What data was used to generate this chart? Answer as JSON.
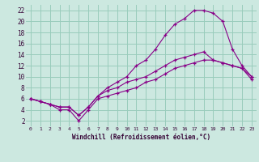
{
  "xlabel": "Windchill (Refroidissement éolien,°C)",
  "bg_color": "#cce8e0",
  "grid_color": "#99ccbb",
  "line_color": "#880088",
  "xlim": [
    -0.5,
    23.5
  ],
  "ylim": [
    1,
    23
  ],
  "xticks": [
    0,
    1,
    2,
    3,
    4,
    5,
    6,
    7,
    8,
    9,
    10,
    11,
    12,
    13,
    14,
    15,
    16,
    17,
    18,
    19,
    20,
    21,
    22,
    23
  ],
  "yticks": [
    2,
    4,
    6,
    8,
    10,
    12,
    14,
    16,
    18,
    20,
    22
  ],
  "line_top_x": [
    0,
    1,
    2,
    3,
    4,
    5,
    6,
    7,
    8,
    9,
    10,
    11,
    12,
    13,
    14,
    15,
    16,
    17,
    18,
    19,
    20,
    21,
    22,
    23
  ],
  "line_top_y": [
    6,
    5.5,
    5,
    4.5,
    4.5,
    3,
    4.5,
    6.5,
    8,
    9,
    10,
    12,
    13,
    15,
    17.5,
    19.5,
    20.5,
    22,
    22,
    21.5,
    20,
    15,
    12,
    10
  ],
  "line_mid_x": [
    0,
    1,
    2,
    3,
    4,
    5,
    6,
    7,
    8,
    9,
    10,
    11,
    12,
    13,
    14,
    15,
    16,
    17,
    18,
    19,
    20,
    21,
    22,
    23
  ],
  "line_mid_y": [
    6,
    5.5,
    5,
    4.5,
    4.5,
    3,
    4.5,
    6.5,
    7.5,
    8,
    9,
    9.5,
    10,
    11,
    12,
    13,
    13.5,
    14,
    14.5,
    13,
    12.5,
    12,
    11.5,
    10
  ],
  "line_bot_x": [
    0,
    1,
    2,
    3,
    4,
    5,
    6,
    7,
    8,
    9,
    10,
    11,
    12,
    13,
    14,
    15,
    16,
    17,
    18,
    19,
    20,
    21,
    22,
    23
  ],
  "line_bot_y": [
    6,
    5.5,
    5,
    4,
    4,
    2,
    4,
    6,
    6.5,
    7,
    7.5,
    8,
    9,
    9.5,
    10.5,
    11.5,
    12,
    12.5,
    13,
    13,
    12.5,
    12,
    11.5,
    9.5
  ]
}
